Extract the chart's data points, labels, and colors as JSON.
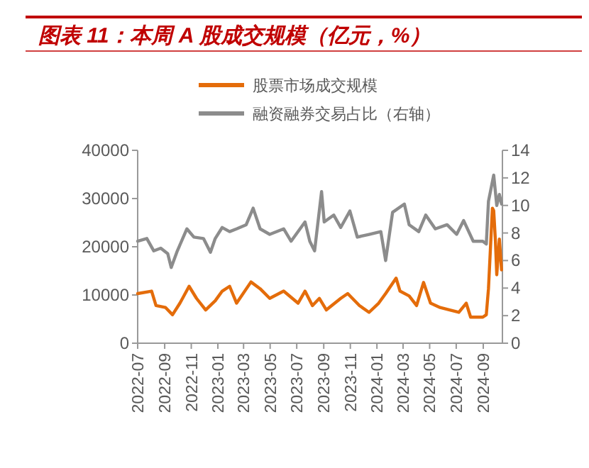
{
  "chart_data": {
    "type": "line",
    "title": "图表 11：本周 A 股成交规模（亿元，%）",
    "xlim": [
      "2022-07-01",
      "2024-10-15"
    ],
    "xticks": [
      {
        "value": "2022-07-01",
        "label": "2022-07"
      },
      {
        "value": "2022-09-01",
        "label": "2022-09"
      },
      {
        "value": "2022-11-01",
        "label": "2022-11"
      },
      {
        "value": "2023-01-01",
        "label": "2023-01"
      },
      {
        "value": "2023-03-01",
        "label": "2023-03"
      },
      {
        "value": "2023-05-01",
        "label": "2023-05"
      },
      {
        "value": "2023-07-01",
        "label": "2023-07"
      },
      {
        "value": "2023-09-01",
        "label": "2023-09"
      },
      {
        "value": "2023-11-01",
        "label": "2023-11"
      },
      {
        "value": "2024-01-01",
        "label": "2024-01"
      },
      {
        "value": "2024-03-01",
        "label": "2024-03"
      },
      {
        "value": "2024-05-01",
        "label": "2024-05"
      },
      {
        "value": "2024-07-01",
        "label": "2024-07"
      },
      {
        "value": "2024-09-01",
        "label": "2024-09"
      }
    ],
    "ylim": [
      0,
      40000
    ],
    "yticks": [
      0,
      10000,
      20000,
      30000,
      40000
    ],
    "y2lim": [
      0,
      14
    ],
    "y2ticks": [
      0,
      2,
      4,
      6,
      8,
      10,
      12,
      14
    ],
    "legend": "top",
    "grid": false,
    "series": [
      {
        "name": "股票市场成交规模",
        "color": "#e46c0a",
        "x": [
          "2022-07-01",
          "2022-08-02",
          "2022-08-12",
          "2022-09-03",
          "2022-09-19",
          "2022-10-06",
          "2022-10-27",
          "2022-11-13",
          "2022-12-04",
          "2022-12-26",
          "2023-01-11",
          "2023-01-28",
          "2023-02-13",
          "2023-03-18",
          "2023-04-08",
          "2023-04-30",
          "2023-06-01",
          "2023-07-04",
          "2023-07-20",
          "2023-08-06",
          "2023-08-22",
          "2023-09-07",
          "2023-10-10",
          "2023-10-26",
          "2023-11-22",
          "2023-12-14",
          "2024-01-05",
          "2024-01-21",
          "2024-02-14",
          "2024-02-23",
          "2024-03-15",
          "2024-04-01",
          "2024-04-17",
          "2024-05-03",
          "2024-05-25",
          "2024-06-16",
          "2024-07-07",
          "2024-07-24",
          "2024-08-03",
          "2024-08-31",
          "2024-09-08",
          "2024-09-13",
          "2024-09-22",
          "2024-09-25",
          "2024-09-29",
          "2024-10-02",
          "2024-10-08",
          "2024-10-13"
        ],
        "values": [
          10300,
          10800,
          7800,
          7400,
          5900,
          8300,
          11800,
          9300,
          6900,
          8800,
          10800,
          11800,
          8300,
          12700,
          11300,
          9300,
          10800,
          8300,
          10800,
          7800,
          9300,
          6900,
          9300,
          10300,
          7800,
          6400,
          8300,
          10300,
          13500,
          10800,
          9800,
          7800,
          12600,
          8300,
          7400,
          6900,
          6400,
          8300,
          5400,
          5400,
          5900,
          11300,
          28000,
          27500,
          21100,
          14200,
          21600,
          15200
        ]
      },
      {
        "name": "融资融券交易占比（右轴）",
        "color": "#8c8c8c",
        "axis": "y2",
        "x": [
          "2022-07-01",
          "2022-07-22",
          "2022-08-07",
          "2022-08-23",
          "2022-09-08",
          "2022-09-16",
          "2022-09-30",
          "2022-10-22",
          "2022-11-07",
          "2022-11-29",
          "2022-12-15",
          "2022-12-26",
          "2023-01-11",
          "2023-01-28",
          "2023-02-13",
          "2023-03-07",
          "2023-03-23",
          "2023-04-08",
          "2023-04-30",
          "2023-06-01",
          "2023-06-18",
          "2023-07-20",
          "2023-07-31",
          "2023-08-11",
          "2023-08-27",
          "2023-09-02",
          "2023-09-24",
          "2023-10-10",
          "2023-10-31",
          "2023-11-17",
          "2023-12-14",
          "2024-01-10",
          "2024-01-21",
          "2024-02-06",
          "2024-03-04",
          "2024-03-15",
          "2024-04-06",
          "2024-04-22",
          "2024-05-14",
          "2024-06-10",
          "2024-07-02",
          "2024-07-18",
          "2024-08-09",
          "2024-08-31",
          "2024-09-08",
          "2024-09-13",
          "2024-09-25",
          "2024-10-02",
          "2024-10-08",
          "2024-10-13"
        ],
        "values": [
          7.4,
          7.6,
          6.7,
          6.9,
          6.5,
          5.5,
          6.7,
          8.3,
          7.7,
          7.6,
          6.6,
          7.6,
          8.4,
          8.1,
          8.3,
          8.6,
          9.8,
          8.3,
          7.9,
          8.3,
          7.4,
          8.8,
          7.4,
          6.7,
          11.0,
          8.8,
          9.3,
          8.4,
          9.6,
          7.7,
          7.9,
          8.1,
          6.0,
          9.5,
          10.1,
          8.6,
          8.1,
          9.3,
          8.3,
          8.6,
          7.9,
          8.9,
          7.4,
          7.4,
          7.2,
          10.3,
          12.2,
          10.0,
          10.8,
          10.1
        ]
      }
    ]
  }
}
